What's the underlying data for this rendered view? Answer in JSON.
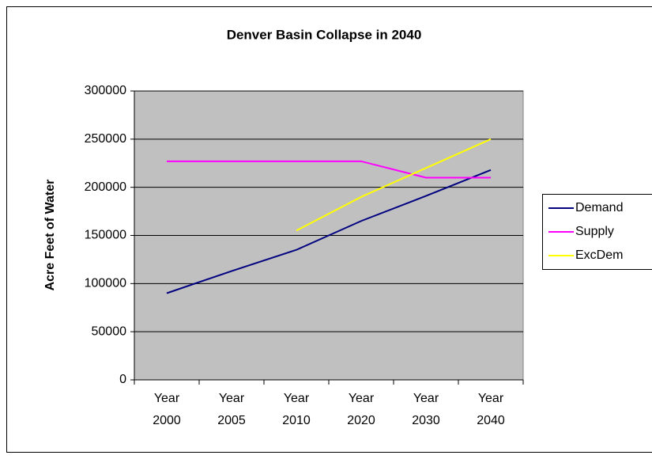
{
  "chart_data": {
    "type": "line",
    "title": "Denver Basin Collapse in 2040",
    "y_label": "Acre Feet of Water",
    "categories": [
      "Year 2000",
      "Year 2005",
      "Year 2010",
      "Year 2020",
      "Year 2030",
      "Year 2040"
    ],
    "series": [
      {
        "name": "Demand",
        "color": "#000080",
        "values": [
          90000,
          113000,
          135000,
          165000,
          191000,
          218000
        ]
      },
      {
        "name": "Supply",
        "color": "#ff00ff",
        "values": [
          227000,
          227000,
          227000,
          227000,
          210000,
          210000
        ]
      },
      {
        "name": "ExcDem",
        "color": "#ffff00",
        "values": [
          null,
          null,
          155000,
          190000,
          220000,
          250000
        ]
      }
    ],
    "ylim": [
      0,
      300000
    ],
    "yticks": [
      0,
      50000,
      100000,
      150000,
      200000,
      250000,
      300000
    ],
    "grid": true,
    "legend": "right"
  }
}
